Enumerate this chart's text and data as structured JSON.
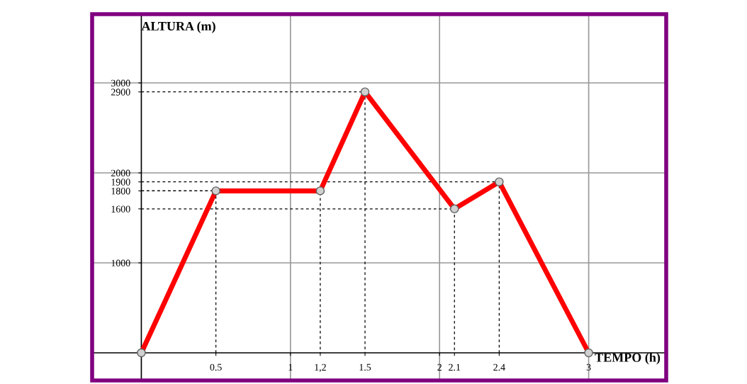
{
  "chart_data": {
    "type": "line",
    "xlabel": "TEMPO (h)",
    "ylabel": "ALTURA (m)",
    "x": [
      0,
      0.5,
      1.2,
      1.5,
      2.1,
      2.4,
      3
    ],
    "series": [
      {
        "color": "#ff0000",
        "values": [
          0,
          1800,
          1800,
          2900,
          1600,
          1900,
          0
        ]
      },
      {
        "color": "#000000",
        "x": [
          0,
          0.5,
          0.5
        ],
        "values": [
          1800,
          1800,
          0
        ],
        "line_style": "dashed",
        "marker": "none"
      },
      {
        "color": "#000000",
        "x": [
          0,
          1.2,
          1.2
        ],
        "values": [
          1800,
          1800,
          0
        ],
        "line_style": "dashed",
        "marker": "none"
      },
      {
        "color": "#000000",
        "x": [
          0,
          1.5,
          1.5
        ],
        "values": [
          2900,
          2900,
          0
        ],
        "line_style": "dashed",
        "marker": "none"
      },
      {
        "color": "#000000",
        "x": [
          0,
          2.1,
          2.1
        ],
        "values": [
          1600,
          1600,
          0
        ],
        "line_style": "dashed",
        "marker": "none"
      },
      {
        "color": "#000000",
        "x": [
          0,
          2.4,
          2.4
        ],
        "values": [
          1900,
          1900,
          0
        ],
        "line_style": "dashed",
        "marker": "none"
      }
    ],
    "marker": "circle",
    "line_style": "solid",
    "xlim": [
      -0.33,
      3.52
    ],
    "ylim": [
      -307,
      3764
    ],
    "xticks": [
      0.5,
      1,
      {
        "value": 1.2,
        "label": "1,2"
      },
      1.5,
      2,
      2.1,
      2.4,
      3
    ],
    "yticks": [
      1000,
      1600,
      1800,
      1900,
      2000,
      2900,
      3000
    ],
    "ref_lines": [
      {
        "axis": "x",
        "value": 1,
        "color": "#999999"
      },
      {
        "axis": "x",
        "value": 2,
        "color": "#999999"
      },
      {
        "axis": "x",
        "value": 3,
        "color": "#999999"
      },
      {
        "axis": "y",
        "value": 1000,
        "color": "#999999"
      },
      {
        "axis": "y",
        "value": 2000,
        "color": "#999999"
      },
      {
        "axis": "y",
        "value": 3000,
        "color": "#999999"
      }
    ]
  }
}
